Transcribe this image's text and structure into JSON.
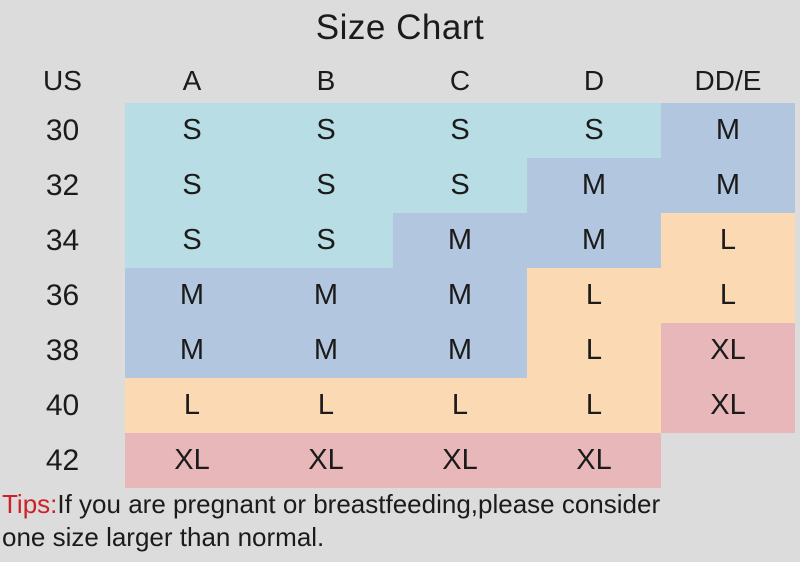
{
  "title": "Size Chart",
  "colors": {
    "background": "#dcdcdc",
    "text": "#1b1b1b",
    "tips_red": "#cc2227",
    "cell": {
      "S": "#b9dde4",
      "M": "#b2c6e0",
      "L": "#fbd9b3",
      "XL": "#e8b7ba",
      "": "transparent"
    }
  },
  "chart_data": {
    "type": "table",
    "title": "Size Chart",
    "columns": [
      "US",
      "A",
      "B",
      "C",
      "D",
      "DD/E"
    ],
    "rows": [
      {
        "label": "30",
        "cells": [
          "S",
          "S",
          "S",
          "S",
          "M"
        ]
      },
      {
        "label": "32",
        "cells": [
          "S",
          "S",
          "S",
          "M",
          "M"
        ]
      },
      {
        "label": "34",
        "cells": [
          "S",
          "S",
          "M",
          "M",
          "L"
        ]
      },
      {
        "label": "36",
        "cells": [
          "M",
          "M",
          "M",
          "L",
          "L"
        ]
      },
      {
        "label": "38",
        "cells": [
          "M",
          "M",
          "M",
          "L",
          "XL"
        ]
      },
      {
        "label": "40",
        "cells": [
          "L",
          "L",
          "L",
          "L",
          "XL"
        ]
      },
      {
        "label": "42",
        "cells": [
          "XL",
          "XL",
          "XL",
          "XL",
          ""
        ]
      }
    ],
    "color_legend": {
      "S": "light-cyan",
      "M": "light-steel-blue",
      "L": "peach",
      "XL": "pink"
    }
  },
  "tips": {
    "prefix": "Tips:",
    "line1": "If you are pregnant or breastfeeding,please consider",
    "line2": "one size larger than normal."
  }
}
